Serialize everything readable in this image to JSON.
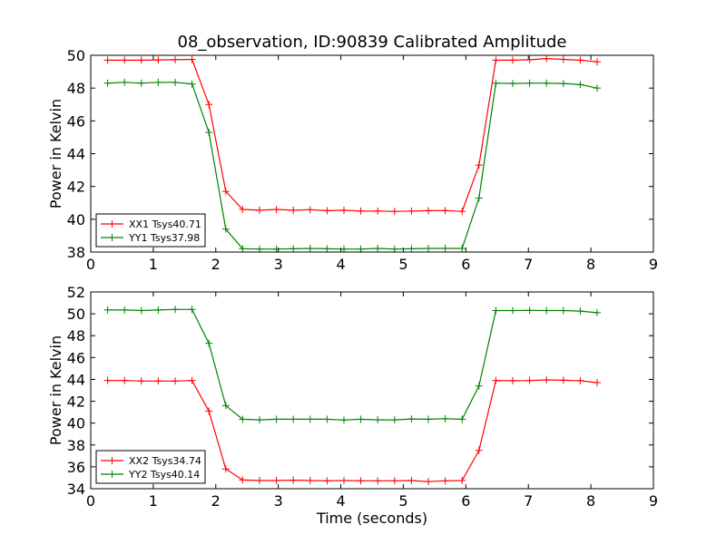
{
  "figure": {
    "title": "08_observation, ID:90839 Calibrated Amplitude"
  },
  "chart_data": [
    {
      "type": "line",
      "title": "08_observation, ID:90839 Calibrated Amplitude",
      "xlabel": "",
      "ylabel": "Power in Kelvin",
      "xlim": [
        0,
        9
      ],
      "ylim": [
        38,
        50
      ],
      "xticks": [
        0,
        1,
        2,
        3,
        4,
        5,
        6,
        7,
        8,
        9
      ],
      "yticks": [
        38,
        40,
        42,
        44,
        46,
        48,
        50
      ],
      "grid": false,
      "legend_position": "lower-left",
      "x": [
        0.27,
        0.54,
        0.81,
        1.08,
        1.35,
        1.62,
        1.89,
        2.16,
        2.43,
        2.7,
        2.97,
        3.24,
        3.51,
        3.78,
        4.05,
        4.32,
        4.59,
        4.86,
        5.13,
        5.4,
        5.67,
        5.94,
        6.21,
        6.48,
        6.75,
        7.02,
        7.29,
        7.56,
        7.83,
        8.1
      ],
      "series": [
        {
          "name": "XX1 Tsys40.71",
          "color": "#ff0000",
          "values": [
            49.7,
            49.7,
            49.7,
            49.72,
            49.73,
            49.75,
            47.0,
            41.7,
            40.6,
            40.55,
            40.6,
            40.55,
            40.58,
            40.52,
            40.55,
            40.5,
            40.5,
            40.48,
            40.5,
            40.52,
            40.53,
            40.48,
            43.3,
            49.7,
            49.7,
            49.73,
            49.8,
            49.75,
            49.7,
            49.6
          ]
        },
        {
          "name": "YY1 Tsys37.98",
          "color": "#008000",
          "values": [
            48.3,
            48.35,
            48.3,
            48.35,
            48.35,
            48.25,
            45.3,
            39.4,
            38.2,
            38.18,
            38.18,
            38.2,
            38.22,
            38.2,
            38.18,
            38.18,
            38.22,
            38.18,
            38.2,
            38.22,
            38.22,
            38.22,
            41.3,
            48.3,
            48.28,
            48.3,
            48.3,
            48.28,
            48.22,
            48.0
          ]
        }
      ]
    },
    {
      "type": "line",
      "title": "",
      "xlabel": "Time (seconds)",
      "ylabel": "Power in Kelvin",
      "xlim": [
        0,
        9
      ],
      "ylim": [
        34,
        52
      ],
      "xticks": [
        0,
        1,
        2,
        3,
        4,
        5,
        6,
        7,
        8,
        9
      ],
      "yticks": [
        34,
        36,
        38,
        40,
        42,
        44,
        46,
        48,
        50,
        52
      ],
      "grid": false,
      "legend_position": "lower-left",
      "x": [
        0.27,
        0.54,
        0.81,
        1.08,
        1.35,
        1.62,
        1.89,
        2.16,
        2.43,
        2.7,
        2.97,
        3.24,
        3.51,
        3.78,
        4.05,
        4.32,
        4.59,
        4.86,
        5.13,
        5.4,
        5.67,
        5.94,
        6.21,
        6.48,
        6.75,
        7.02,
        7.29,
        7.56,
        7.83,
        8.1
      ],
      "series": [
        {
          "name": "XX2 Tsys34.74",
          "color": "#ff0000",
          "values": [
            43.9,
            43.9,
            43.85,
            43.85,
            43.85,
            43.9,
            41.1,
            35.8,
            34.8,
            34.75,
            34.75,
            34.78,
            34.75,
            34.72,
            34.75,
            34.72,
            34.72,
            34.72,
            34.75,
            34.65,
            34.72,
            34.75,
            37.5,
            43.9,
            43.88,
            43.9,
            43.95,
            43.92,
            43.88,
            43.7
          ]
        },
        {
          "name": "YY2 Tsys40.14",
          "color": "#008000",
          "values": [
            50.35,
            50.35,
            50.3,
            50.35,
            50.4,
            50.4,
            47.3,
            41.6,
            40.35,
            40.3,
            40.35,
            40.35,
            40.35,
            40.35,
            40.28,
            40.35,
            40.3,
            40.3,
            40.38,
            40.35,
            40.4,
            40.35,
            43.4,
            50.3,
            50.3,
            50.32,
            50.3,
            50.3,
            50.25,
            50.1
          ]
        }
      ]
    }
  ]
}
